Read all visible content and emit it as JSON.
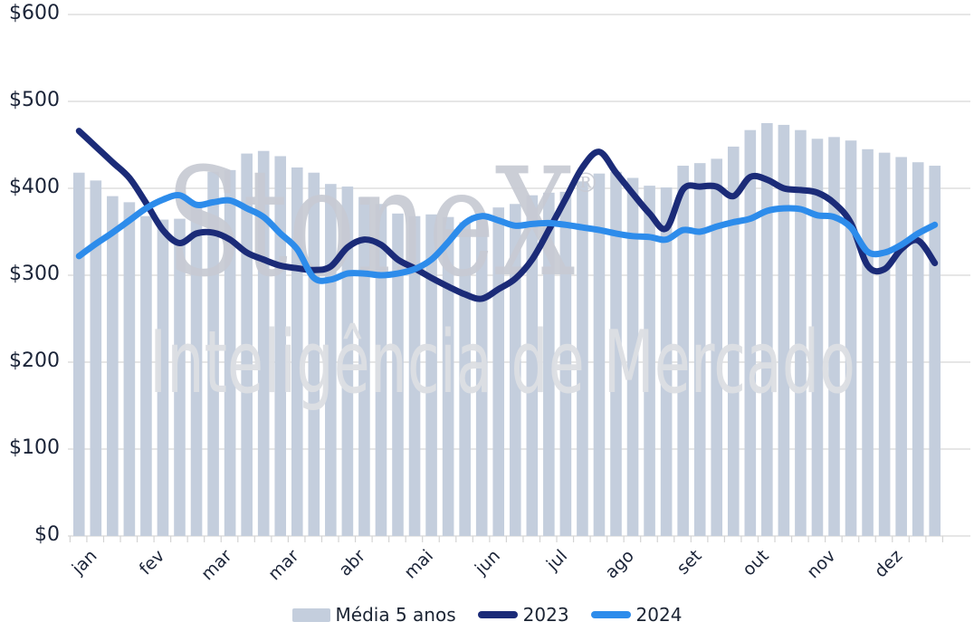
{
  "watermark": {
    "brand": "StoneX",
    "registered": "®",
    "tagline": "Inteligência de Mercado"
  },
  "legend": {
    "items": [
      {
        "label": "Média 5 anos",
        "type": "bar",
        "color": "#c4cedd"
      },
      {
        "label": "2023",
        "type": "line",
        "color": "#1b2b78"
      },
      {
        "label": "2024",
        "type": "line",
        "color": "#2d8ceb"
      }
    ]
  },
  "chart_data": {
    "type": "bar",
    "subtype": "combo-bar-line-weekly",
    "title": "",
    "xlabel": "",
    "ylabel": "",
    "x_unit": "week-of-year",
    "categories_visible": [
      "jan",
      "fev",
      "mar",
      "mar",
      "abr",
      "mai",
      "jun",
      "jul",
      "ago",
      "set",
      "out",
      "nov",
      "dez"
    ],
    "month_label_week_indices": [
      0,
      4,
      8,
      12,
      16,
      20,
      24,
      28,
      32,
      36,
      40,
      44,
      48
    ],
    "y_axis": {
      "min": 0,
      "max": 600,
      "step": 100,
      "prefix": "$",
      "tick_labels": [
        "$0",
        "$100",
        "$200",
        "$300",
        "$400",
        "$500",
        "$600"
      ]
    },
    "grid": true,
    "legend_position": "bottom",
    "series": [
      {
        "name": "Média 5 anos",
        "type": "bar",
        "color": "#c4cedd",
        "values": [
          418,
          409,
          391,
          384,
          368,
          364,
          365,
          384,
          419,
          421,
          440,
          443,
          437,
          424,
          418,
          405,
          402,
          390,
          382,
          371,
          368,
          370,
          367,
          361,
          363,
          378,
          382,
          392,
          395,
          396,
          408,
          417,
          419,
          412,
          403,
          401,
          426,
          429,
          434,
          448,
          467,
          475,
          473,
          467,
          457,
          459,
          455,
          445,
          441,
          436,
          430,
          426
        ]
      },
      {
        "name": "2023",
        "type": "line",
        "color": "#1b2b78",
        "values": [
          466,
          448,
          430,
          412,
          383,
          352,
          337,
          348,
          349,
          341,
          326,
          318,
          311,
          308,
          306,
          310,
          332,
          341,
          335,
          318,
          308,
          297,
          287,
          278,
          273,
          284,
          296,
          318,
          352,
          388,
          424,
          442,
          418,
          394,
          371,
          354,
          399,
          402,
          402,
          391,
          413,
          410,
          400,
          398,
          395,
          383,
          360,
          311,
          307,
          330,
          340,
          314
        ]
      },
      {
        "name": "2024",
        "type": "line",
        "color": "#2d8ceb",
        "values": [
          322,
          336,
          349,
          363,
          377,
          387,
          392,
          381,
          384,
          386,
          377,
          367,
          348,
          330,
          297,
          295,
          302,
          302,
          300,
          302,
          307,
          318,
          338,
          360,
          368,
          363,
          357,
          359,
          360,
          358,
          355,
          352,
          348,
          345,
          344,
          341,
          352,
          350,
          356,
          361,
          365,
          374,
          377,
          376,
          369,
          367,
          355,
          327,
          326,
          335,
          348,
          358
        ]
      }
    ]
  },
  "colors": {
    "background": "#ffffff",
    "gridline": "#d8d8d8",
    "axis_tick": "#d4d4d4",
    "axis_text": "#1b2438",
    "watermark_brand": "#c7cad3",
    "watermark_tagline": "#dcdee3"
  }
}
